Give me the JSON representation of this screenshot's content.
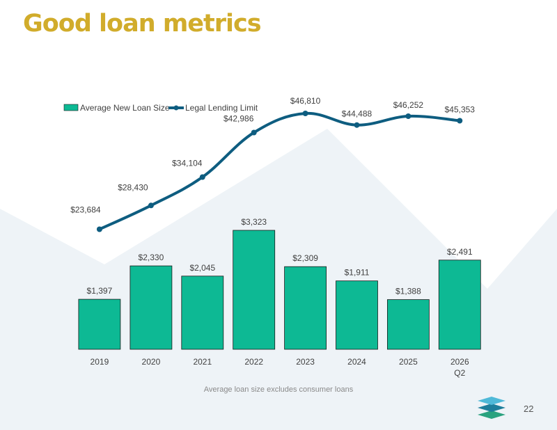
{
  "page": {
    "title": "Good loan metrics",
    "footnote": "Average loan size excludes consumer loans",
    "page_number": "22"
  },
  "colors": {
    "title": "#d1ac2b",
    "bar": "#0db994",
    "bar_edge": "#1a1a1a",
    "line": "#0e5d80",
    "background_shape": "#eef3f7"
  },
  "chart_data": {
    "type": "bar+line",
    "categories": [
      [
        "2019"
      ],
      [
        "2020"
      ],
      [
        "2021"
      ],
      [
        "2022"
      ],
      [
        "2023"
      ],
      [
        "2024"
      ],
      [
        "2025"
      ],
      [
        "2026",
        "Q2"
      ]
    ],
    "series": [
      {
        "name": "Average New Loan Size",
        "type": "bar",
        "values": [
          1397,
          2330,
          2045,
          3323,
          2309,
          1911,
          1388,
          2491
        ],
        "labels": [
          "$1,397",
          "$2,330",
          "$2,045",
          "$3,323",
          "$2,309",
          "$1,911",
          "$1,388",
          "$2,491"
        ]
      },
      {
        "name": "Legal Lending Limit",
        "type": "line",
        "values": [
          23684,
          28430,
          34104,
          42986,
          46810,
          44488,
          46252,
          45353
        ],
        "labels": [
          "$23,684",
          "$28,430",
          "$34,104",
          "$42,986",
          "$46,810",
          "$44,488",
          "$46,252",
          "$45,353"
        ]
      }
    ],
    "legend": "top-left",
    "grid": false
  }
}
